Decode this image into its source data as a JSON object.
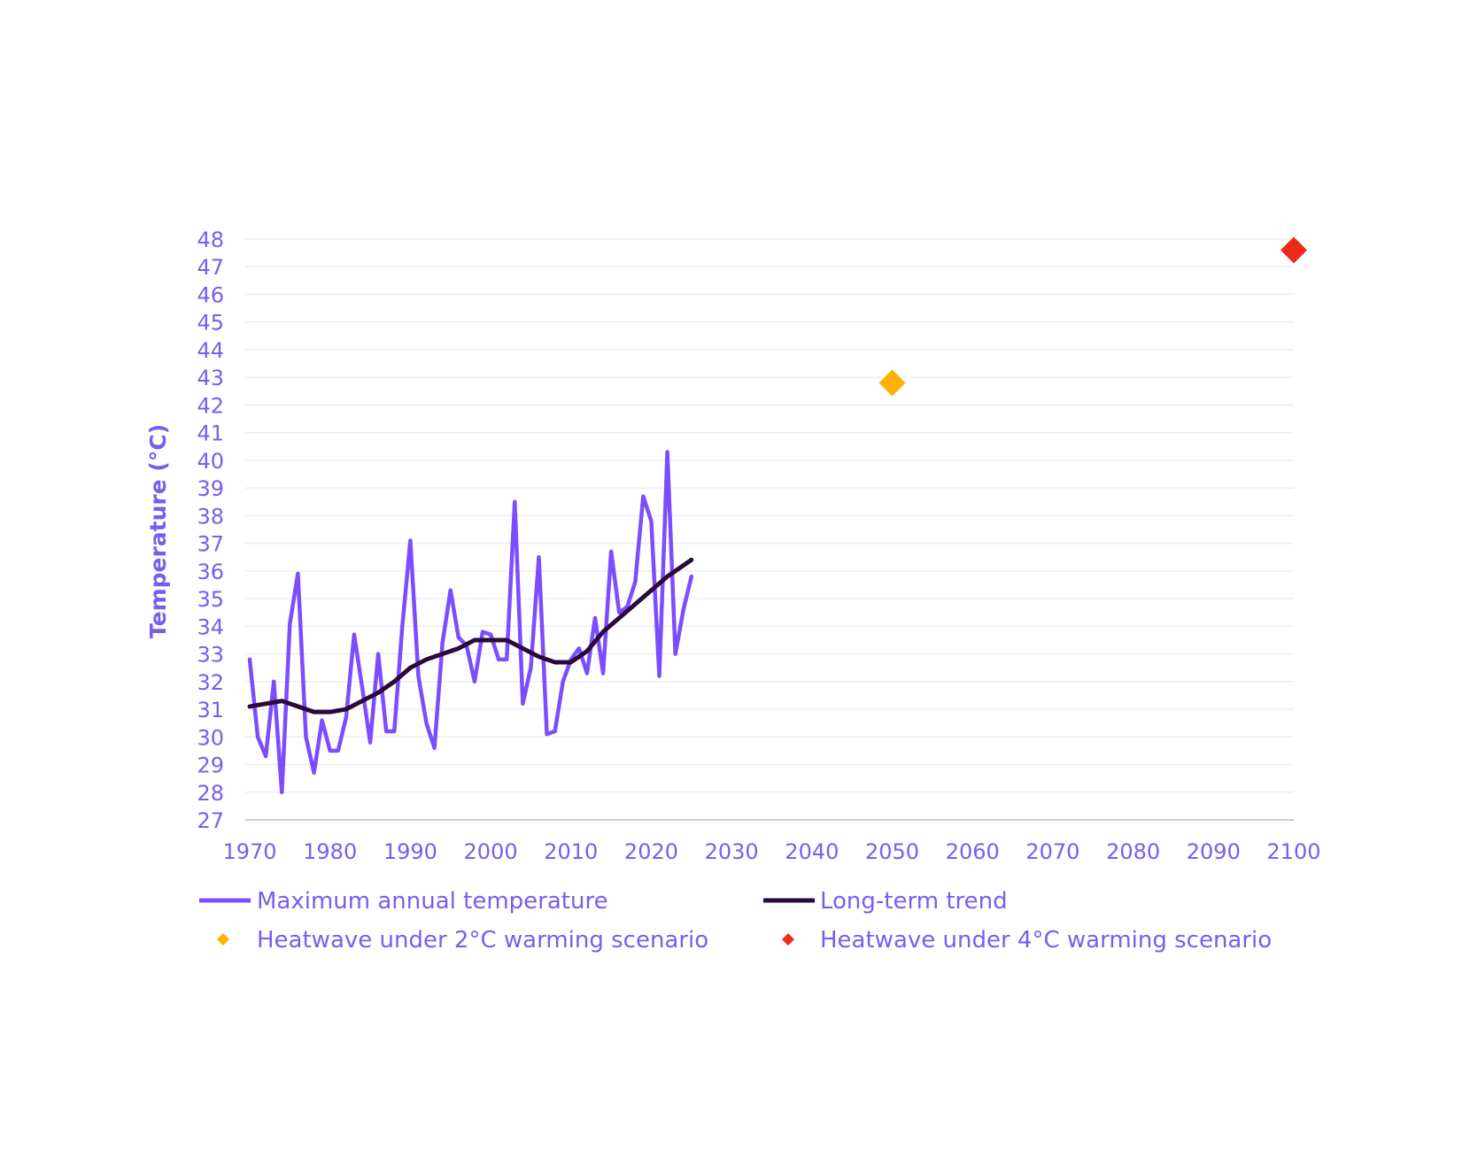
{
  "chart_data": {
    "type": "line",
    "ylabel": "Temperature (°C)",
    "xlabel": "",
    "title": "",
    "xlim": [
      1970,
      2100
    ],
    "ylim": [
      27,
      48
    ],
    "x_ticks": [
      1970,
      1980,
      1990,
      2000,
      2010,
      2020,
      2030,
      2040,
      2050,
      2060,
      2070,
      2080,
      2090,
      2100
    ],
    "y_ticks": [
      27,
      28,
      29,
      30,
      31,
      32,
      33,
      34,
      35,
      36,
      37,
      38,
      39,
      40,
      41,
      42,
      43,
      44,
      45,
      46,
      47,
      48
    ],
    "grid": "horizontal",
    "legend_position": "bottom",
    "series": [
      {
        "name": "Maximum annual temperature",
        "kind": "line",
        "color": "#7c4dff",
        "x": [
          1970,
          1971,
          1972,
          1973,
          1974,
          1975,
          1976,
          1977,
          1978,
          1979,
          1980,
          1981,
          1982,
          1983,
          1984,
          1985,
          1986,
          1987,
          1988,
          1989,
          1990,
          1991,
          1992,
          1993,
          1994,
          1995,
          1996,
          1997,
          1998,
          1999,
          2000,
          2001,
          2002,
          2003,
          2004,
          2005,
          2006,
          2007,
          2008,
          2009,
          2010,
          2011,
          2012,
          2013,
          2014,
          2015,
          2016,
          2017,
          2018,
          2019,
          2020,
          2021,
          2022,
          2023,
          2024,
          2025
        ],
        "y": [
          32.8,
          30.0,
          29.3,
          32.0,
          28.0,
          34.1,
          35.9,
          30.0,
          28.7,
          30.6,
          29.5,
          29.5,
          30.7,
          33.7,
          31.8,
          29.8,
          33.0,
          30.2,
          30.2,
          34.0,
          37.1,
          32.2,
          30.5,
          29.6,
          33.4,
          35.3,
          33.6,
          33.3,
          32.0,
          33.8,
          33.7,
          32.8,
          32.8,
          38.5,
          31.2,
          32.5,
          36.5,
          30.1,
          30.2,
          32.0,
          32.8,
          33.2,
          32.3,
          34.3,
          32.3,
          36.7,
          34.5,
          34.7,
          35.6,
          38.7,
          37.8,
          32.2,
          40.3,
          33.0,
          34.6,
          35.8
        ]
      },
      {
        "name": "Long-term trend",
        "kind": "line",
        "color": "#2a0a3a",
        "x": [
          1970,
          1972,
          1974,
          1976,
          1978,
          1980,
          1982,
          1984,
          1986,
          1988,
          1990,
          1992,
          1994,
          1996,
          1998,
          2000,
          2002,
          2004,
          2006,
          2008,
          2010,
          2012,
          2014,
          2016,
          2018,
          2020,
          2022,
          2024,
          2025
        ],
        "y": [
          31.1,
          31.2,
          31.3,
          31.1,
          30.9,
          30.9,
          31.0,
          31.3,
          31.6,
          32.0,
          32.5,
          32.8,
          33.0,
          33.2,
          33.5,
          33.5,
          33.5,
          33.2,
          32.9,
          32.7,
          32.7,
          33.1,
          33.8,
          34.3,
          34.8,
          35.3,
          35.8,
          36.2,
          36.4
        ]
      },
      {
        "name": "Heatwave under 2°C warming scenario",
        "kind": "marker",
        "color": "#ffb000",
        "x": [
          2050
        ],
        "y": [
          42.8
        ]
      },
      {
        "name": "Heatwave under 4°C warming scenario",
        "kind": "marker",
        "color": "#ee2a1b",
        "x": [
          2100
        ],
        "y": [
          47.6
        ]
      }
    ]
  }
}
